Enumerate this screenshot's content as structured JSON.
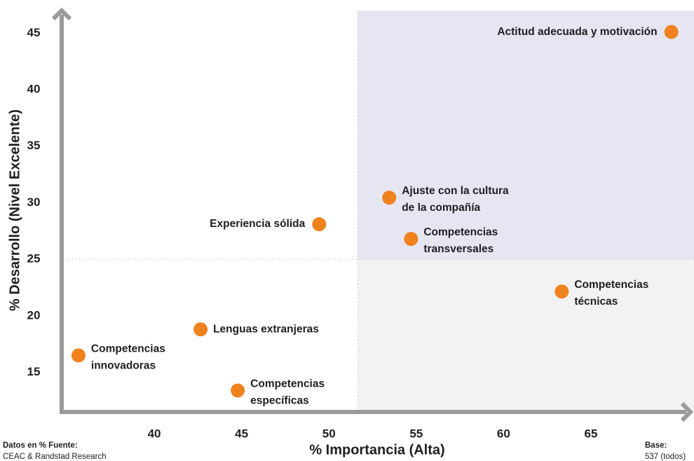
{
  "chart_data": {
    "type": "scatter",
    "xlabel": "% Importancia (Alta)",
    "ylabel": "% Desarrollo (Nivel Excelente)",
    "xlim": [
      34.7,
      70.7
    ],
    "ylim": [
      11.5,
      47
    ],
    "xticks": [
      40,
      45,
      50,
      55,
      60,
      65
    ],
    "yticks": [
      15,
      20,
      25,
      30,
      35,
      40,
      45
    ],
    "thresholds": {
      "x": 51.65,
      "y": 25
    },
    "color": "#f0821e",
    "quadrant_colors": {
      "upper_right": "#e6e6f3",
      "lower_right": "#f2f2f2"
    },
    "points": [
      {
        "label": [
          "Actitud adecuada y motivación"
        ],
        "x": 69.6,
        "y": 45.1
      },
      {
        "label": [
          "Ajuste con la cultura",
          "de la compañía"
        ],
        "x": 53.45,
        "y": 30.45
      },
      {
        "label": [
          "Experiencia  sólida"
        ],
        "x": 49.44,
        "y": 28.1
      },
      {
        "label": [
          "Competencias",
          "transversales"
        ],
        "x": 54.7,
        "y": 26.8
      },
      {
        "label": [
          "Competencias",
          "técnicas"
        ],
        "x": 63.33,
        "y": 22.15
      },
      {
        "label": [
          "Lenguas extranjeras"
        ],
        "x": 42.65,
        "y": 18.8
      },
      {
        "label": [
          "Competencias",
          "innovadoras"
        ],
        "x": 35.66,
        "y": 16.5
      },
      {
        "label": [
          "Competencias",
          "específicas"
        ],
        "x": 44.78,
        "y": 13.4
      }
    ],
    "footer": {
      "source_title": "Datos  en % Fuente:",
      "source": "CEAC & Randstad Research",
      "base_title": "Base:",
      "base": "537 (todos)"
    }
  }
}
